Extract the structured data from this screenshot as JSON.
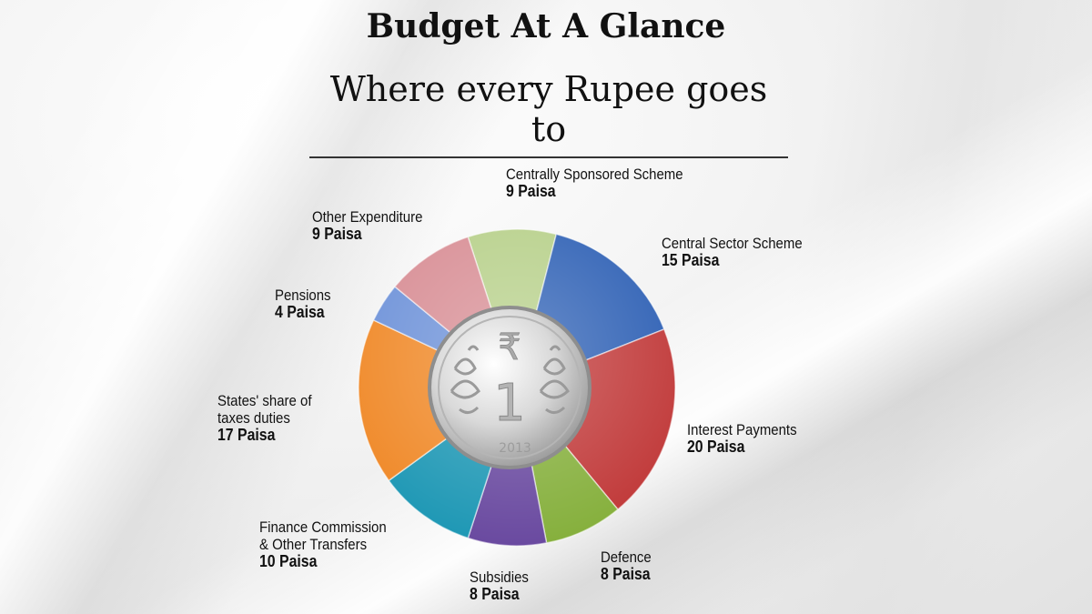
{
  "title": "Budget At A Glance",
  "subtitle": "Where every Rupee goes to",
  "coin": {
    "symbol": "₹",
    "numeral": "1",
    "year": "2013"
  },
  "chart_data": {
    "type": "pie",
    "unit": "Paisa",
    "slices": [
      {
        "label": "Centrally Sponsored Scheme",
        "value": 9,
        "value_text": "9 Paisa",
        "color": "#b7d08a"
      },
      {
        "label": "Central Sector Scheme",
        "value": 15,
        "value_text": "15 Paisa",
        "color": "#2f61b5"
      },
      {
        "label": "Interest Payments",
        "value": 20,
        "value_text": "20 Paisa",
        "color": "#c13a3a"
      },
      {
        "label": "Defence",
        "value": 8,
        "value_text": "8 Paisa",
        "color": "#86b03d"
      },
      {
        "label": "Subsidies",
        "value": 8,
        "value_text": "8 Paisa",
        "color": "#6a4aa0"
      },
      {
        "label": "Finance Commission\n& Other Transfers",
        "value": 10,
        "value_text": "10 Paisa",
        "color": "#1f98b5"
      },
      {
        "label": "States' share of\ntaxes duties",
        "value": 17,
        "value_text": "17 Paisa",
        "color": "#f08a2a"
      },
      {
        "label": "Pensions",
        "value": 4,
        "value_text": "4 Paisa",
        "color": "#6f93d9"
      },
      {
        "label": "Other Expenditure",
        "value": 9,
        "value_text": "9 Paisa",
        "color": "#d88e95"
      }
    ]
  }
}
